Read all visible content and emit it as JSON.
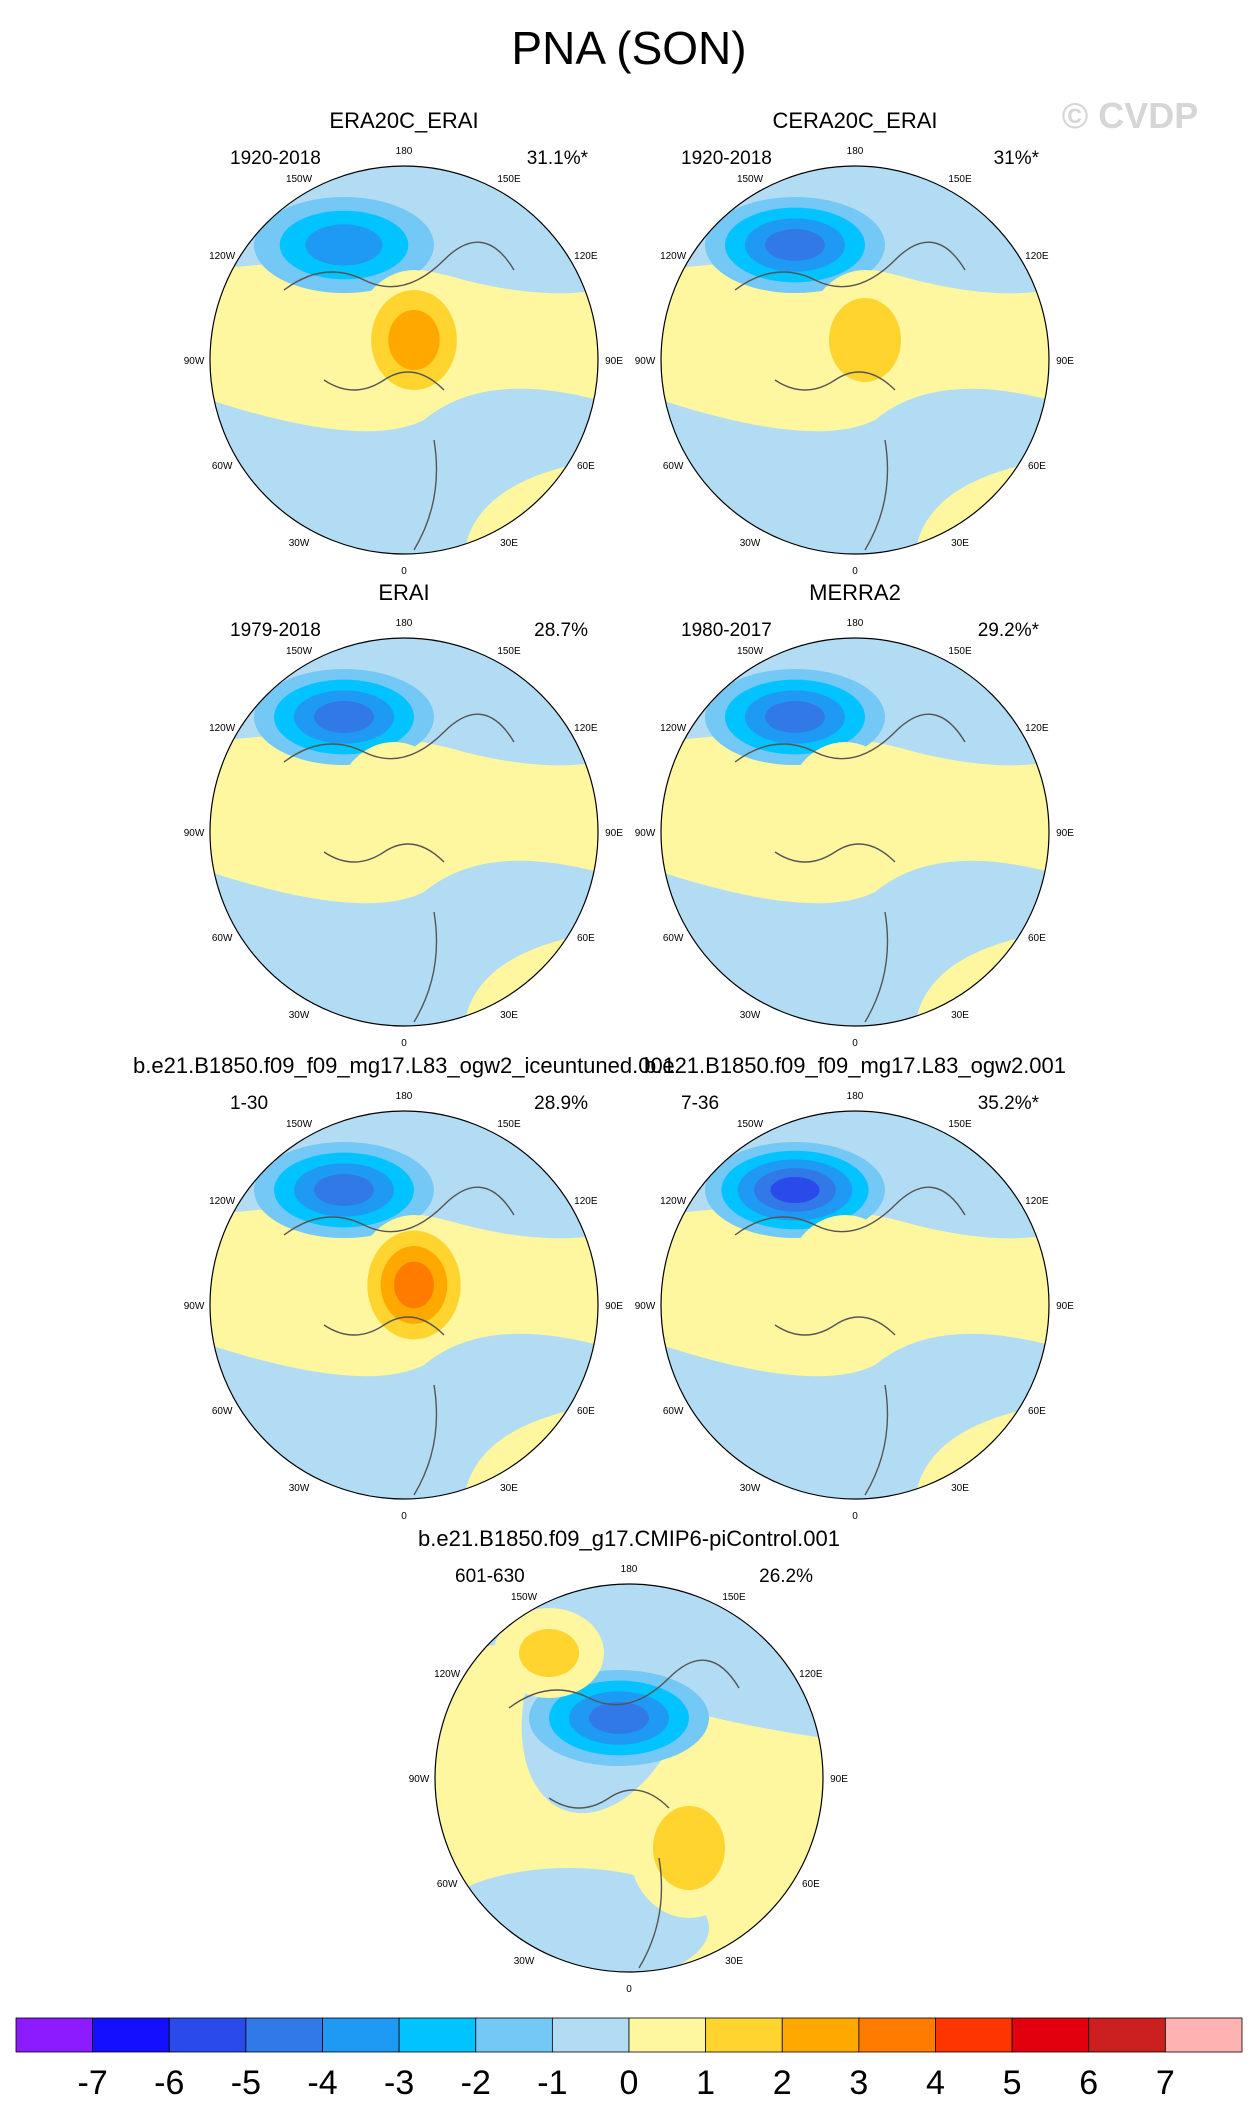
{
  "figure": {
    "title": "PNA (SON)",
    "watermark": "© CVDP"
  },
  "chart_data": [
    {
      "type": "heatmap",
      "projection": "polar-stereographic",
      "title": "ERA20C_ERAI",
      "period": "1920-2018",
      "variance_explained": "31.1%*",
      "pattern": {
        "neg_center_level": -3,
        "pos_center_level": 3,
        "pos_region": "central-arctic"
      }
    },
    {
      "type": "heatmap",
      "projection": "polar-stereographic",
      "title": "CERA20C_ERAI",
      "period": "1920-2018",
      "variance_explained": "31%*",
      "pattern": {
        "neg_center_level": -4,
        "pos_center_level": 2,
        "pos_region": "central-arctic"
      }
    },
    {
      "type": "heatmap",
      "projection": "polar-stereographic",
      "title": "ERAI",
      "period": "1979-2018",
      "variance_explained": "28.7%",
      "pattern": {
        "neg_center_level": -4,
        "pos_center_level": 1,
        "pos_region": "weak"
      }
    },
    {
      "type": "heatmap",
      "projection": "polar-stereographic",
      "title": "MERRA2",
      "period": "1980-2017",
      "variance_explained": "29.2%*",
      "pattern": {
        "neg_center_level": -4,
        "pos_center_level": 1,
        "pos_region": "weak"
      }
    },
    {
      "type": "heatmap",
      "projection": "polar-stereographic",
      "title": "b.e21.B1850.f09_f09_mg17.L83_ogw2_iceuntuned.001",
      "period": "1-30",
      "variance_explained": "28.9%",
      "pattern": {
        "neg_center_level": -4,
        "pos_center_level": 4,
        "pos_region": "central-arctic"
      }
    },
    {
      "type": "heatmap",
      "projection": "polar-stereographic",
      "title": "b.e21.B1850.f09_f09_mg17.L83_ogw2.001",
      "period": "7-36",
      "variance_explained": "35.2%*",
      "pattern": {
        "neg_center_level": -5,
        "pos_center_level": 1,
        "pos_region": "weak"
      }
    },
    {
      "type": "heatmap",
      "projection": "polar-stereographic",
      "title": "b.e21.B1850.f09_g17.CMIP6-piControl.001",
      "period": "601-630",
      "variance_explained": "26.2%",
      "pattern": {
        "neg_center_level": -4,
        "pos_center_level": 2,
        "pos_region": "split"
      }
    }
  ],
  "longitude_labels": [
    "180",
    "150E",
    "120E",
    "90E",
    "60E",
    "30E",
    "0",
    "30W",
    "60W",
    "90W",
    "120W",
    "150W"
  ],
  "colorbar": {
    "levels": [
      "-7",
      "-6",
      "-5",
      "-4",
      "-3",
      "-2",
      "-1",
      "0",
      "1",
      "2",
      "3",
      "4",
      "5",
      "6",
      "7"
    ],
    "colors": [
      "#8c1cff",
      "#1410ff",
      "#2a4bea",
      "#3279e8",
      "#1e9af5",
      "#00c3ff",
      "#73c8f5",
      "#b2dcf3",
      "#fff6a0",
      "#ffd42e",
      "#ffa900",
      "#ff7c00",
      "#ff3500",
      "#e3000e",
      "#cc1f1f",
      "#ffb2b2"
    ]
  }
}
